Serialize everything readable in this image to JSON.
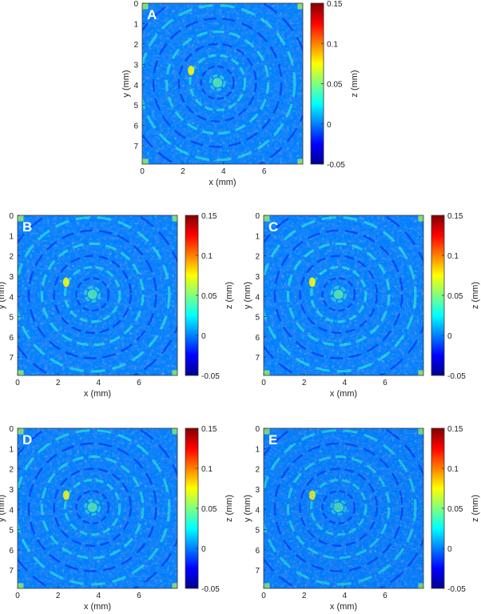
{
  "chart_data": [
    {
      "type": "heatmap",
      "panel_label": "A",
      "xlabel": "x (mm)",
      "ylabel": "y (mm)",
      "colorbar_label": "z (mm)",
      "xlim": [
        0,
        7.9
      ],
      "ylim": [
        0,
        7.9
      ],
      "y_direction": "top-to-bottom",
      "clim": [
        -0.05,
        0.15
      ],
      "x_ticks": [
        0,
        2,
        4,
        6
      ],
      "y_ticks": [
        0,
        1,
        2,
        3,
        4,
        5,
        6,
        7
      ],
      "colorbar_ticks": [
        "0.15",
        "0.1",
        "0.05",
        "0",
        "-0.05"
      ],
      "colormap": "jet",
      "surface": "concentric ring pattern centred near (3.7, 3.9) mm, values mostly between -0.02 and 0.05 mm, bright highlight near (2.4, 3.3) mm"
    },
    {
      "type": "heatmap",
      "panel_label": "B",
      "xlabel": "x (mm)",
      "ylabel": "y (mm)",
      "colorbar_label": "z (mm)",
      "xlim": [
        0,
        7.9
      ],
      "ylim": [
        0,
        7.9
      ],
      "y_direction": "top-to-bottom",
      "clim": [
        -0.05,
        0.15
      ],
      "x_ticks": [
        0,
        2,
        4,
        6
      ],
      "y_ticks": [
        0,
        1,
        2,
        3,
        4,
        5,
        6,
        7
      ],
      "colorbar_ticks": [
        "0.15",
        "0.1",
        "0.05",
        "0",
        "-0.05"
      ],
      "colormap": "jet",
      "surface": "concentric ring pattern centred near (3.7, 3.9) mm, values mostly between -0.02 and 0.05 mm"
    },
    {
      "type": "heatmap",
      "panel_label": "C",
      "xlabel": "x (mm)",
      "ylabel": "y (mm)",
      "colorbar_label": "z (mm)",
      "xlim": [
        0,
        7.9
      ],
      "ylim": [
        0,
        7.9
      ],
      "y_direction": "top-to-bottom",
      "clim": [
        -0.05,
        0.15
      ],
      "x_ticks": [
        0,
        2,
        4,
        6
      ],
      "y_ticks": [
        0,
        1,
        2,
        3,
        4,
        5,
        6,
        7
      ],
      "colorbar_ticks": [
        "0.15",
        "0.1",
        "0.05",
        "0",
        "-0.05"
      ],
      "colormap": "jet",
      "surface": "concentric ring pattern centred near (3.7, 3.9) mm, values mostly between -0.02 and 0.05 mm"
    },
    {
      "type": "heatmap",
      "panel_label": "D",
      "xlabel": "x (mm)",
      "ylabel": "y (mm)",
      "colorbar_label": "z (mm)",
      "xlim": [
        0,
        7.9
      ],
      "ylim": [
        0,
        7.9
      ],
      "y_direction": "top-to-bottom",
      "clim": [
        -0.05,
        0.15
      ],
      "x_ticks": [
        0,
        2,
        4,
        6
      ],
      "y_ticks": [
        0,
        1,
        2,
        3,
        4,
        5,
        6,
        7
      ],
      "colorbar_ticks": [
        "0.15",
        "0.1",
        "0.05",
        "0",
        "-0.05"
      ],
      "colormap": "jet",
      "surface": "concentric ring pattern centred near (3.7, 3.9) mm with added fine-grain noise"
    },
    {
      "type": "heatmap",
      "panel_label": "E",
      "xlabel": "x (mm)",
      "ylabel": "y (mm)",
      "colorbar_label": "z (mm)",
      "xlim": [
        0,
        7.9
      ],
      "ylim": [
        0,
        7.9
      ],
      "y_direction": "top-to-bottom",
      "clim": [
        -0.05,
        0.15
      ],
      "x_ticks": [
        0,
        2,
        4,
        6
      ],
      "y_ticks": [
        0,
        1,
        2,
        3,
        4,
        5,
        6,
        7
      ],
      "colorbar_ticks": [
        "0.15",
        "0.1",
        "0.05",
        "0",
        "-0.05"
      ],
      "colormap": "jet",
      "surface": "concentric ring pattern centred near (3.7, 3.9) mm with stronger noise, especially toward lower-right corner"
    }
  ]
}
